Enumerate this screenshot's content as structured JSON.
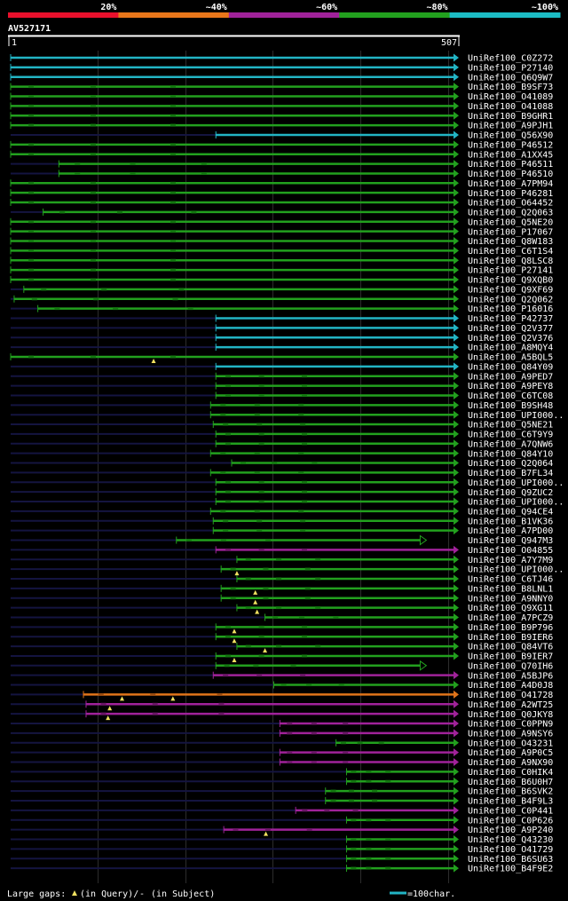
{
  "chart_data": {
    "type": "alignment_overview",
    "query_id": "AV527171",
    "query_start": "1",
    "query_end": "507",
    "query_length": 507,
    "identity_legend": [
      {
        "label": "20%",
        "color": "#e8102c"
      },
      {
        "label": "~40%",
        "color": "#e8761a"
      },
      {
        "label": "~60%",
        "color": "#a0229a"
      },
      {
        "label": "~80%",
        "color": "#22a01e"
      },
      {
        "label": "~100%",
        "color": "#1cbcc4"
      }
    ],
    "colors": {
      "c": "#22b4c4",
      "g": "#22a01e",
      "m": "#a0229a",
      "o": "#e0741a"
    },
    "hits": [
      {
        "id": "UniRef100_C0Z272",
        "s": 1,
        "e": 507,
        "c": "c",
        "a": 1,
        "b": 0,
        "gaps": []
      },
      {
        "id": "UniRef100_P27140",
        "s": 1,
        "e": 507,
        "c": "c",
        "a": 1,
        "b": 0,
        "gaps": []
      },
      {
        "id": "UniRef100_Q6Q9W7",
        "s": 1,
        "e": 507,
        "c": "c",
        "a": 1,
        "b": 0,
        "gaps": []
      },
      {
        "id": "UniRef100_B9SF73",
        "s": 1,
        "e": 507,
        "c": "g",
        "a": 1,
        "b": 0,
        "gaps": []
      },
      {
        "id": "UniRef100_O41089",
        "s": 1,
        "e": 507,
        "c": "g",
        "a": 1,
        "b": 0,
        "gaps": []
      },
      {
        "id": "UniRef100_O41088",
        "s": 1,
        "e": 507,
        "c": "g",
        "a": 1,
        "b": 0,
        "gaps": []
      },
      {
        "id": "UniRef100_B9GHR1",
        "s": 1,
        "e": 507,
        "c": "g",
        "a": 1,
        "b": 0,
        "gaps": []
      },
      {
        "id": "UniRef100_A9PJH1",
        "s": 1,
        "e": 507,
        "c": "g",
        "a": 1,
        "b": 0,
        "gaps": []
      },
      {
        "id": "UniRef100_Q56X90",
        "s": 235,
        "e": 507,
        "c": "c",
        "a": 1,
        "b": 0,
        "gaps": []
      },
      {
        "id": "UniRef100_P46512",
        "s": 1,
        "e": 507,
        "c": "g",
        "a": 1,
        "b": 0,
        "gaps": []
      },
      {
        "id": "UniRef100_A1XX45",
        "s": 1,
        "e": 507,
        "c": "g",
        "a": 1,
        "b": 0,
        "gaps": []
      },
      {
        "id": "UniRef100_P46511",
        "s": 56,
        "e": 507,
        "c": "g",
        "a": 1,
        "b": 0,
        "gaps": []
      },
      {
        "id": "UniRef100_P46510",
        "s": 56,
        "e": 507,
        "c": "g",
        "a": 1,
        "b": 0,
        "gaps": []
      },
      {
        "id": "UniRef100_A7PM94",
        "s": 1,
        "e": 507,
        "c": "g",
        "a": 1,
        "b": 0,
        "gaps": []
      },
      {
        "id": "UniRef100_P46281",
        "s": 1,
        "e": 507,
        "c": "g",
        "a": 1,
        "b": 0,
        "gaps": []
      },
      {
        "id": "UniRef100_O64452",
        "s": 1,
        "e": 507,
        "c": "g",
        "a": 1,
        "b": 0,
        "gaps": []
      },
      {
        "id": "UniRef100_Q2Q063",
        "s": 38,
        "e": 507,
        "c": "g",
        "a": 1,
        "b": 0,
        "gaps": []
      },
      {
        "id": "UniRef100_Q5NE20",
        "s": 1,
        "e": 507,
        "c": "g",
        "a": 1,
        "b": 0,
        "gaps": []
      },
      {
        "id": "UniRef100_P17067",
        "s": 1,
        "e": 507,
        "c": "g",
        "a": 1,
        "b": 0,
        "gaps": []
      },
      {
        "id": "UniRef100_Q8W183",
        "s": 1,
        "e": 507,
        "c": "g",
        "a": 1,
        "b": 0,
        "gaps": []
      },
      {
        "id": "UniRef100_C6T1S4",
        "s": 1,
        "e": 507,
        "c": "g",
        "a": 1,
        "b": 0,
        "gaps": []
      },
      {
        "id": "UniRef100_Q8LSC8",
        "s": 1,
        "e": 507,
        "c": "g",
        "a": 1,
        "b": 0,
        "gaps": []
      },
      {
        "id": "UniRef100_P27141",
        "s": 1,
        "e": 507,
        "c": "g",
        "a": 1,
        "b": 0,
        "gaps": []
      },
      {
        "id": "UniRef100_Q9XQB0",
        "s": 1,
        "e": 507,
        "c": "g",
        "a": 1,
        "b": 0,
        "gaps": []
      },
      {
        "id": "UniRef100_Q9XF69",
        "s": 16,
        "e": 507,
        "c": "g",
        "a": 1,
        "b": 0,
        "gaps": []
      },
      {
        "id": "UniRef100_Q2Q062",
        "s": 5,
        "e": 507,
        "c": "g",
        "a": 1,
        "b": 0,
        "gaps": []
      },
      {
        "id": "UniRef100_P16016",
        "s": 32,
        "e": 507,
        "c": "g",
        "a": 1,
        "b": 0,
        "gaps": []
      },
      {
        "id": "UniRef100_P42737",
        "s": 235,
        "e": 507,
        "c": "c",
        "a": 1,
        "b": 0,
        "gaps": []
      },
      {
        "id": "UniRef100_Q2V377",
        "s": 235,
        "e": 507,
        "c": "c",
        "a": 1,
        "b": 0,
        "gaps": []
      },
      {
        "id": "UniRef100_Q2V376",
        "s": 235,
        "e": 507,
        "c": "c",
        "a": 1,
        "b": 0,
        "gaps": []
      },
      {
        "id": "UniRef100_A8MQY4",
        "s": 235,
        "e": 507,
        "c": "c",
        "a": 1,
        "b": 0,
        "gaps": []
      },
      {
        "id": "UniRef100_A5BQL5",
        "s": 1,
        "e": 507,
        "c": "g",
        "a": 1,
        "b": 0,
        "gaps": [
          164
        ]
      },
      {
        "id": "UniRef100_Q84Y09",
        "s": 235,
        "e": 507,
        "c": "c",
        "a": 1,
        "b": 0,
        "gaps": []
      },
      {
        "id": "UniRef100_A9PED7",
        "s": 235,
        "e": 507,
        "c": "g",
        "a": 1,
        "b": 0,
        "gaps": []
      },
      {
        "id": "UniRef100_A9PEY8",
        "s": 235,
        "e": 507,
        "c": "g",
        "a": 1,
        "b": 0,
        "gaps": []
      },
      {
        "id": "UniRef100_C6TC08",
        "s": 235,
        "e": 507,
        "c": "g",
        "a": 1,
        "b": 0,
        "gaps": []
      },
      {
        "id": "UniRef100_B9SH48",
        "s": 229,
        "e": 507,
        "c": "g",
        "a": 1,
        "b": 0,
        "gaps": []
      },
      {
        "id": "UniRef100_UPI000..",
        "s": 229,
        "e": 507,
        "c": "g",
        "a": 1,
        "b": 0,
        "gaps": []
      },
      {
        "id": "UniRef100_Q5NE21",
        "s": 232,
        "e": 507,
        "c": "g",
        "a": 1,
        "b": 0,
        "gaps": []
      },
      {
        "id": "UniRef100_C6T9Y9",
        "s": 235,
        "e": 507,
        "c": "g",
        "a": 1,
        "b": 0,
        "gaps": []
      },
      {
        "id": "UniRef100_A7QNW6",
        "s": 235,
        "e": 507,
        "c": "g",
        "a": 1,
        "b": 0,
        "gaps": []
      },
      {
        "id": "UniRef100_Q84Y10",
        "s": 229,
        "e": 507,
        "c": "g",
        "a": 1,
        "b": 0,
        "gaps": []
      },
      {
        "id": "UniRef100_Q2Q064",
        "s": 253,
        "e": 507,
        "c": "g",
        "a": 1,
        "b": 0,
        "gaps": []
      },
      {
        "id": "UniRef100_B7FL34",
        "s": 229,
        "e": 507,
        "c": "g",
        "a": 1,
        "b": 0,
        "gaps": []
      },
      {
        "id": "UniRef100_UPI000..",
        "s": 235,
        "e": 507,
        "c": "g",
        "a": 1,
        "b": 0,
        "gaps": []
      },
      {
        "id": "UniRef100_Q9ZUC2",
        "s": 235,
        "e": 507,
        "c": "g",
        "a": 1,
        "b": 0,
        "gaps": []
      },
      {
        "id": "UniRef100_UPI000..",
        "s": 235,
        "e": 507,
        "c": "g",
        "a": 1,
        "b": 0,
        "gaps": []
      },
      {
        "id": "UniRef100_Q94CE4",
        "s": 229,
        "e": 507,
        "c": "g",
        "a": 1,
        "b": 0,
        "gaps": []
      },
      {
        "id": "UniRef100_B1VK36",
        "s": 232,
        "e": 507,
        "c": "g",
        "a": 1,
        "b": 0,
        "gaps": []
      },
      {
        "id": "UniRef100_A7PD00",
        "s": 232,
        "e": 507,
        "c": "g",
        "a": 1,
        "b": 0,
        "gaps": []
      },
      {
        "id": "UniRef100_Q947M3",
        "s": 190,
        "e": 472,
        "c": "g",
        "a": 1,
        "b": 1,
        "gaps": []
      },
      {
        "id": "UniRef100_O04855",
        "s": 235,
        "e": 507,
        "c": "m",
        "a": 1,
        "b": 0,
        "gaps": []
      },
      {
        "id": "UniRef100_A7Y7M9",
        "s": 259,
        "e": 507,
        "c": "g",
        "a": 1,
        "b": 0,
        "gaps": []
      },
      {
        "id": "UniRef100_UPI000..",
        "s": 241,
        "e": 507,
        "c": "g",
        "a": 1,
        "b": 0,
        "gaps": [
          259
        ]
      },
      {
        "id": "UniRef100_C6TJ46",
        "s": 259,
        "e": 507,
        "c": "g",
        "a": 1,
        "b": 0,
        "gaps": []
      },
      {
        "id": "UniRef100_B8LNL1",
        "s": 241,
        "e": 507,
        "c": "g",
        "a": 1,
        "b": 0,
        "gaps": [
          280
        ]
      },
      {
        "id": "UniRef100_A9NNY0",
        "s": 241,
        "e": 507,
        "c": "g",
        "a": 1,
        "b": 0,
        "gaps": [
          280
        ]
      },
      {
        "id": "UniRef100_Q9XG11",
        "s": 259,
        "e": 507,
        "c": "g",
        "a": 1,
        "b": 0,
        "gaps": [
          282
        ]
      },
      {
        "id": "UniRef100_A7PCZ9",
        "s": 291,
        "e": 507,
        "c": "g",
        "a": 1,
        "b": 0,
        "gaps": []
      },
      {
        "id": "UniRef100_B9P796",
        "s": 235,
        "e": 507,
        "c": "g",
        "a": 1,
        "b": 0,
        "gaps": [
          256
        ]
      },
      {
        "id": "UniRef100_B9IER6",
        "s": 235,
        "e": 507,
        "c": "g",
        "a": 1,
        "b": 0,
        "gaps": [
          256
        ]
      },
      {
        "id": "UniRef100_Q84VT6",
        "s": 259,
        "e": 507,
        "c": "g",
        "a": 1,
        "b": 0,
        "gaps": [
          291
        ]
      },
      {
        "id": "UniRef100_B9IER7",
        "s": 235,
        "e": 507,
        "c": "g",
        "a": 1,
        "b": 0,
        "gaps": [
          256
        ]
      },
      {
        "id": "UniRef100_Q70IH6",
        "s": 235,
        "e": 472,
        "c": "g",
        "a": 1,
        "b": 1,
        "gaps": []
      },
      {
        "id": "UniRef100_A5BJP6",
        "s": 232,
        "e": 507,
        "c": "m",
        "a": 1,
        "b": 0,
        "gaps": []
      },
      {
        "id": "UniRef100_A4D0J8",
        "s": 301,
        "e": 507,
        "c": "g",
        "a": 1,
        "b": 0,
        "gaps": []
      },
      {
        "id": "UniRef100_O41728",
        "s": 84,
        "e": 507,
        "c": "o",
        "a": 1,
        "b": 0,
        "gaps": [
          128,
          186
        ]
      },
      {
        "id": "UniRef100_A2WT25",
        "s": 87,
        "e": 507,
        "c": "m",
        "a": 1,
        "b": 0,
        "gaps": [
          114
        ]
      },
      {
        "id": "UniRef100_Q0JKY8",
        "s": 87,
        "e": 507,
        "c": "m",
        "a": 1,
        "b": 0,
        "gaps": [
          112
        ]
      },
      {
        "id": "UniRef100_C0PPN9",
        "s": 308,
        "e": 507,
        "c": "m",
        "a": 1,
        "b": 0,
        "gaps": []
      },
      {
        "id": "UniRef100_A9NSY6",
        "s": 308,
        "e": 507,
        "c": "m",
        "a": 1,
        "b": 0,
        "gaps": []
      },
      {
        "id": "UniRef100_O43231",
        "s": 372,
        "e": 507,
        "c": "g",
        "a": 1,
        "b": 0,
        "gaps": []
      },
      {
        "id": "UniRef100_A9P0C5",
        "s": 308,
        "e": 507,
        "c": "m",
        "a": 1,
        "b": 0,
        "gaps": []
      },
      {
        "id": "UniRef100_A9NX90",
        "s": 308,
        "e": 507,
        "c": "m",
        "a": 1,
        "b": 0,
        "gaps": []
      },
      {
        "id": "UniRef100_C0HIK4",
        "s": 384,
        "e": 507,
        "c": "g",
        "a": 1,
        "b": 0,
        "gaps": []
      },
      {
        "id": "UniRef100_B6U0H7",
        "s": 384,
        "e": 507,
        "c": "g",
        "a": 1,
        "b": 0,
        "gaps": []
      },
      {
        "id": "UniRef100_B6SVK2",
        "s": 360,
        "e": 507,
        "c": "g",
        "a": 1,
        "b": 0,
        "gaps": []
      },
      {
        "id": "UniRef100_B4F9L3",
        "s": 360,
        "e": 507,
        "c": "g",
        "a": 1,
        "b": 0,
        "gaps": []
      },
      {
        "id": "UniRef100_C0P441",
        "s": 326,
        "e": 507,
        "c": "m",
        "a": 1,
        "b": 0,
        "gaps": []
      },
      {
        "id": "UniRef100_C0P626",
        "s": 384,
        "e": 507,
        "c": "g",
        "a": 1,
        "b": 0,
        "gaps": []
      },
      {
        "id": "UniRef100_A9P240",
        "s": 244,
        "e": 507,
        "c": "m",
        "a": 1,
        "b": 0,
        "gaps": [
          292
        ]
      },
      {
        "id": "UniRef100_Q43230",
        "s": 384,
        "e": 507,
        "c": "g",
        "a": 1,
        "b": 0,
        "gaps": []
      },
      {
        "id": "UniRef100_O41729",
        "s": 384,
        "e": 507,
        "c": "g",
        "a": 1,
        "b": 0,
        "gaps": []
      },
      {
        "id": "UniRef100_B6SU63",
        "s": 384,
        "e": 507,
        "c": "g",
        "a": 1,
        "b": 0,
        "gaps": []
      },
      {
        "id": "UniRef100_B4F9E2",
        "s": 384,
        "e": 507,
        "c": "g",
        "a": 1,
        "b": 0,
        "gaps": []
      }
    ]
  },
  "footer": {
    "gaps_label": "Large gaps:",
    "query_gap_text": "(in Query)/",
    "subject_gap_symbol": "-",
    "subject_gap_text": "(in Subject)",
    "scale_text": "=100char."
  }
}
